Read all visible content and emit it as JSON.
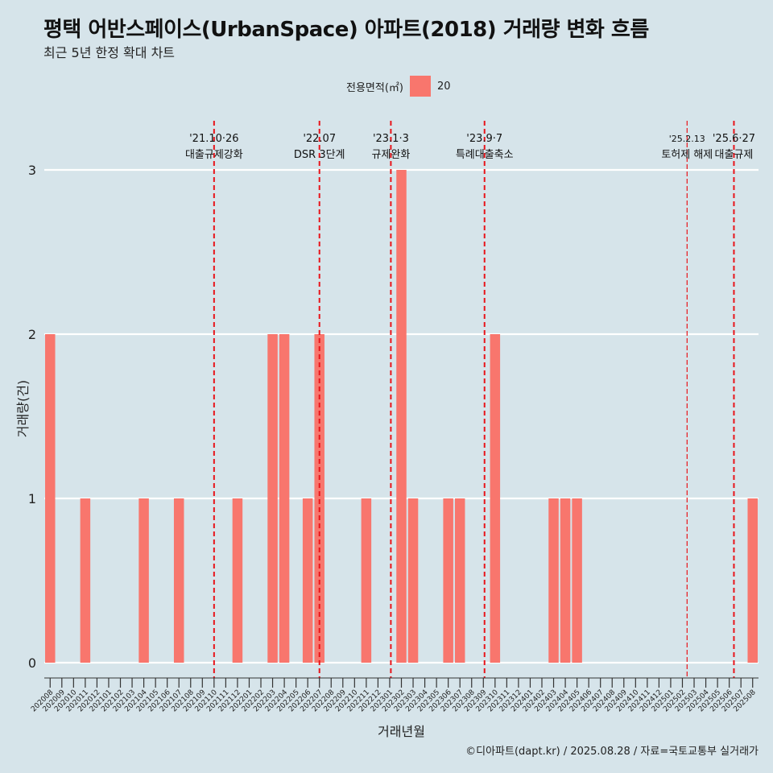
{
  "title": "평택 어반스페이스(UrbanSpace) 아파트(2018) 거래량 변화 흐름",
  "subtitle": "최근 5년 한정 확대 차트",
  "legend": {
    "title": "전용면적(㎡)",
    "item": "20",
    "color": "#f8766d"
  },
  "caption": "©디아파트(dapt.kr) / 2025.08.28 / 자료=국토교통부 실거래가",
  "chart_data": {
    "type": "bar",
    "xlabel": "거래년월",
    "ylabel": "거래량(건)",
    "ylim": [
      0,
      3
    ],
    "yticks": [
      "0",
      "1",
      "2",
      "3"
    ],
    "bar_color": "#f8766d",
    "categories": [
      "202008",
      "202009",
      "202010",
      "202011",
      "202012",
      "202101",
      "202102",
      "202103",
      "202104",
      "202105",
      "202106",
      "202107",
      "202108",
      "202109",
      "202110",
      "202111",
      "202112",
      "202201",
      "202202",
      "202203",
      "202204",
      "202205",
      "202206",
      "202207",
      "202208",
      "202209",
      "202210",
      "202211",
      "202212",
      "202301",
      "202302",
      "202303",
      "202304",
      "202305",
      "202306",
      "202307",
      "202308",
      "202309",
      "202310",
      "202311",
      "202312",
      "202401",
      "202402",
      "202403",
      "202404",
      "202405",
      "202406",
      "202407",
      "202408",
      "202409",
      "202410",
      "202411",
      "202412",
      "202501",
      "202502",
      "202503",
      "202504",
      "202505",
      "202506",
      "202507",
      "202508"
    ],
    "values": [
      2,
      0,
      0,
      1,
      0,
      0,
      0,
      0,
      1,
      0,
      0,
      1,
      0,
      0,
      0,
      0,
      1,
      0,
      0,
      2,
      2,
      0,
      1,
      2,
      0,
      0,
      0,
      1,
      0,
      0,
      3,
      1,
      0,
      0,
      1,
      1,
      0,
      0,
      2,
      0,
      0,
      0,
      0,
      1,
      1,
      1,
      0,
      0,
      0,
      0,
      0,
      0,
      0,
      0,
      0,
      0,
      0,
      0,
      0,
      0,
      1
    ],
    "events": [
      {
        "position": 14.0,
        "date": "'21.10·26",
        "label": "대출규제강화",
        "style": "dashed"
      },
      {
        "position": 23.0,
        "date": "'22.07",
        "label": "DSR 3단계",
        "style": "dashed"
      },
      {
        "position": 29.1,
        "date": "'23.1·3",
        "label": "규제완화",
        "style": "dashed"
      },
      {
        "position": 37.1,
        "date": "'23.9·7",
        "label": "특례대출축소",
        "style": "dashed"
      },
      {
        "position": 54.4,
        "date": "'25.2.13",
        "label": "토허제 해제",
        "style": "thin"
      },
      {
        "position": 58.4,
        "date": "'25.6·27",
        "label": "대출규제",
        "style": "dashed"
      }
    ]
  }
}
